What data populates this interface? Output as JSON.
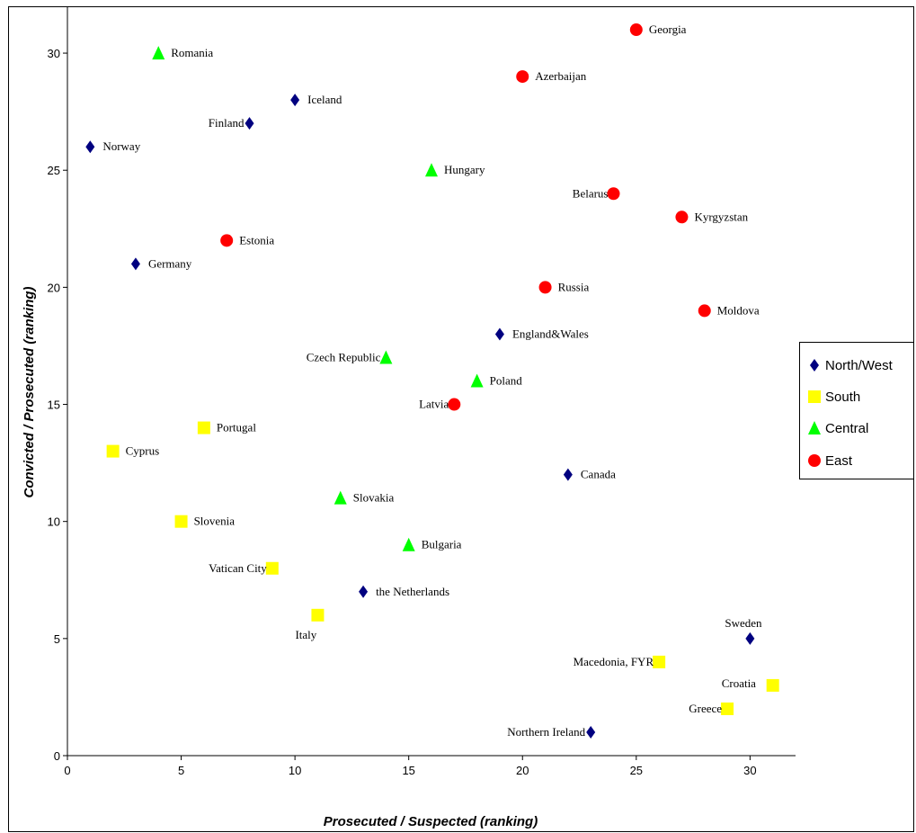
{
  "chart_data": {
    "type": "scatter",
    "title": "",
    "xlabel": "Prosecuted / Suspected (ranking)",
    "ylabel": "Convicted / Prosecuted (ranking)",
    "xlim": [
      0,
      32
    ],
    "ylim": [
      0,
      32
    ],
    "xticks": [
      0,
      5,
      10,
      15,
      20,
      25,
      30
    ],
    "yticks": [
      0,
      5,
      10,
      15,
      20,
      25,
      30
    ],
    "grid": false,
    "legend_position": "right",
    "series": [
      {
        "name": "North/West",
        "marker": "diamond",
        "color": "#000080",
        "points": [
          {
            "label": "Norway",
            "x": 1,
            "y": 26
          },
          {
            "label": "Germany",
            "x": 3,
            "y": 21
          },
          {
            "label": "Finland",
            "x": 8,
            "y": 27
          },
          {
            "label": "Iceland",
            "x": 10,
            "y": 28
          },
          {
            "label": "the Netherlands",
            "x": 13,
            "y": 7
          },
          {
            "label": "England&Wales",
            "x": 19,
            "y": 18
          },
          {
            "label": "Canada",
            "x": 22,
            "y": 12
          },
          {
            "label": "Northern Ireland",
            "x": 23,
            "y": 1
          },
          {
            "label": "Sweden",
            "x": 30,
            "y": 5
          }
        ]
      },
      {
        "name": "South",
        "marker": "square",
        "color": "#FFFF00",
        "points": [
          {
            "label": "Cyprus",
            "x": 2,
            "y": 13
          },
          {
            "label": "Slovenia",
            "x": 5,
            "y": 10
          },
          {
            "label": "Portugal",
            "x": 6,
            "y": 14
          },
          {
            "label": "Vatican City",
            "x": 9,
            "y": 8
          },
          {
            "label": "Italy",
            "x": 11,
            "y": 6
          },
          {
            "label": "Macedonia, FYR",
            "x": 26,
            "y": 4
          },
          {
            "label": "Greece",
            "x": 29,
            "y": 2
          },
          {
            "label": "Croatia",
            "x": 31,
            "y": 3
          }
        ]
      },
      {
        "name": "Central",
        "marker": "triangle",
        "color": "#00FF00",
        "points": [
          {
            "label": "Romania",
            "x": 4,
            "y": 30
          },
          {
            "label": "Slovakia",
            "x": 12,
            "y": 11
          },
          {
            "label": "Czech Republic",
            "x": 14,
            "y": 17
          },
          {
            "label": "Bulgaria",
            "x": 15,
            "y": 9
          },
          {
            "label": "Hungary",
            "x": 16,
            "y": 25
          },
          {
            "label": "Poland",
            "x": 18,
            "y": 16
          }
        ]
      },
      {
        "name": "East",
        "marker": "circle",
        "color": "#FF0000",
        "points": [
          {
            "label": "Estonia",
            "x": 7,
            "y": 22
          },
          {
            "label": "Latvia",
            "x": 17,
            "y": 15
          },
          {
            "label": "Azerbaijan",
            "x": 20,
            "y": 29
          },
          {
            "label": "Russia",
            "x": 21,
            "y": 20
          },
          {
            "label": "Belarus",
            "x": 24,
            "y": 24
          },
          {
            "label": "Georgia",
            "x": 25,
            "y": 31
          },
          {
            "label": "Kyrgyzstan",
            "x": 27,
            "y": 23
          },
          {
            "label": "Moldova",
            "x": 28,
            "y": 19
          }
        ]
      }
    ]
  }
}
